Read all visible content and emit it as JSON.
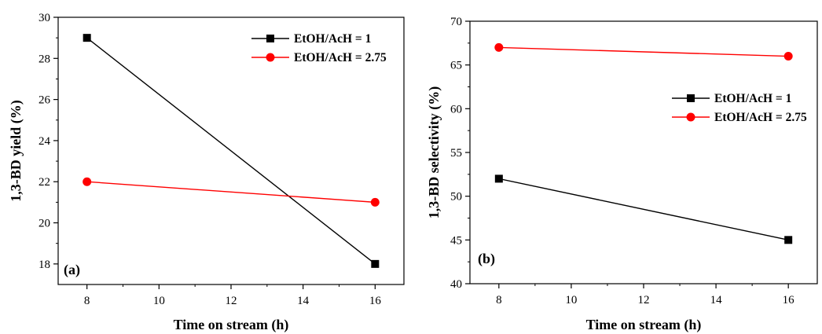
{
  "chart_data": [
    {
      "type": "line",
      "panel_label": "(a)",
      "xlabel": "Time on stream (h)",
      "ylabel": "1,3-BD yield (%)",
      "xlim": [
        7.2,
        16.8
      ],
      "ylim": [
        17,
        30
      ],
      "xticks": [
        8,
        10,
        12,
        14,
        16
      ],
      "yticks": [
        18,
        20,
        22,
        24,
        26,
        28,
        30
      ],
      "x": [
        8,
        16
      ],
      "series": [
        {
          "name": "EtOH/AcH = 1",
          "color": "#000000",
          "marker": "square",
          "values": [
            29,
            18
          ]
        },
        {
          "name": "EtOH/AcH = 2.75",
          "color": "#ff0000",
          "marker": "circle",
          "values": [
            22,
            21
          ]
        }
      ],
      "legend": "top-right",
      "grid": false
    },
    {
      "type": "line",
      "panel_label": "(b)",
      "xlabel": "Time on stream (h)",
      "ylabel": "1,3-BD selectivity (%)",
      "xlim": [
        7.2,
        16.8
      ],
      "ylim": [
        40,
        70
      ],
      "xticks": [
        8,
        10,
        12,
        14,
        16
      ],
      "yticks": [
        40,
        45,
        50,
        55,
        60,
        65,
        70
      ],
      "x": [
        8,
        16
      ],
      "series": [
        {
          "name": "EtOH/AcH = 1",
          "color": "#000000",
          "marker": "square",
          "values": [
            52,
            45
          ]
        },
        {
          "name": "EtOH/AcH = 2.75",
          "color": "#ff0000",
          "marker": "circle",
          "values": [
            67,
            66
          ]
        }
      ],
      "legend": "right",
      "grid": false
    }
  ]
}
